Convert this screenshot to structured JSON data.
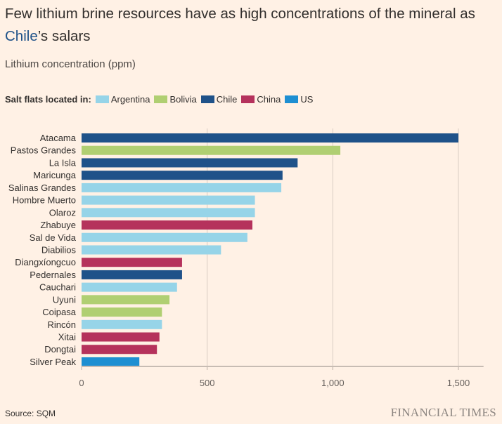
{
  "title": {
    "highlight": "Chile",
    "rest_line1": "Few lithium brine resources have as high concentrations of the mineral as",
    "rest_line2": "’s salars"
  },
  "subtitle": "Lithium concentration (ppm)",
  "legend": {
    "title": "Salt flats located in:",
    "items": [
      {
        "label": "Argentina",
        "color": "#96d4e8"
      },
      {
        "label": "Bolivia",
        "color": "#b0cf72"
      },
      {
        "label": "Chile",
        "color": "#1f5289"
      },
      {
        "label": "China",
        "color": "#b5325c"
      },
      {
        "label": "US",
        "color": "#1e8fd2"
      }
    ]
  },
  "chart_data": {
    "type": "bar",
    "orientation": "horizontal",
    "title": "Few lithium brine resources have as high concentrations of the mineral as Chile’s salars",
    "xlabel": "Lithium concentration (ppm)",
    "ylabel": "",
    "xlim": [
      0,
      1600
    ],
    "xticks": [
      0,
      500,
      1000,
      1500
    ],
    "xtick_labels": [
      "0",
      "500",
      "1,000",
      "1,500"
    ],
    "grid": true,
    "legend_position": "top-left",
    "categories": [
      "Atacama",
      "Pastos Grandes",
      "La Isla",
      "Maricunga",
      "Salinas Grandes",
      "Hombre Muerto",
      "Olaroz",
      "Zhabuye",
      "Sal de Vida",
      "Diabilios",
      "Diangxíongcuo",
      "Pedernales",
      "Cauchari",
      "Uyuni",
      "Coipasa",
      "Rincón",
      "Xitai",
      "Dongtai",
      "Silver Peak"
    ],
    "values": [
      1500,
      1030,
      860,
      800,
      795,
      690,
      690,
      680,
      660,
      555,
      400,
      400,
      380,
      350,
      320,
      320,
      310,
      300,
      230
    ],
    "country": [
      "Chile",
      "Bolivia",
      "Chile",
      "Chile",
      "Argentina",
      "Argentina",
      "Argentina",
      "China",
      "Argentina",
      "Argentina",
      "China",
      "Chile",
      "Argentina",
      "Bolivia",
      "Bolivia",
      "Argentina",
      "China",
      "China",
      "US"
    ]
  },
  "footer": {
    "source": "Source: SQM",
    "brand": "FINANCIAL TIMES"
  }
}
